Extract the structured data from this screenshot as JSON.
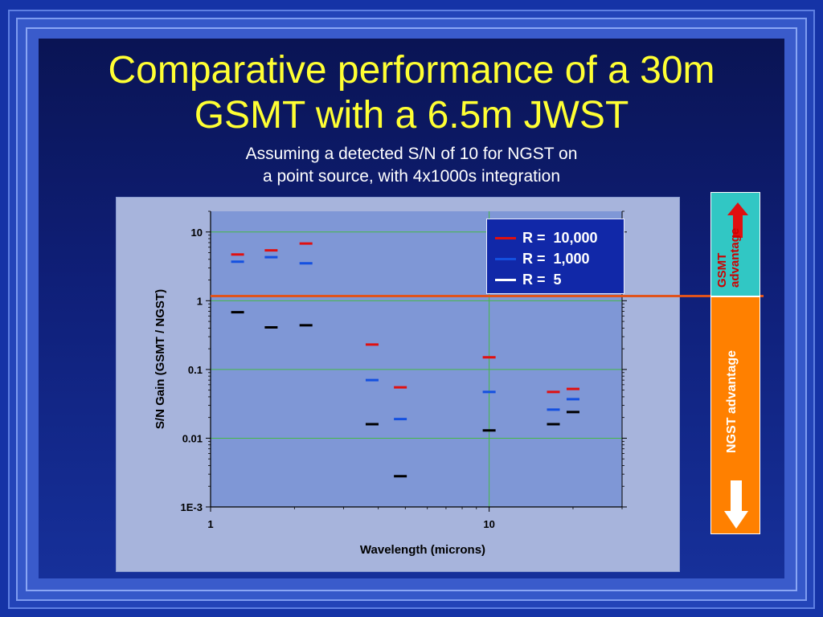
{
  "slide": {
    "title_line1": "Comparative performance of a 30m",
    "title_line2": "GSMT with a 6.5m JWST",
    "subtitle_line1": "Assuming a detected S/N of 10 for NGST on",
    "subtitle_line2": "a point source, with 4x1000s integration",
    "gsmt_side": {
      "line1": "GSMT",
      "line2": "advantage",
      "color": "#cc0000",
      "bg": "#31c7c4"
    },
    "ngst_side": {
      "label": "NGST advantage",
      "bg": "#ff8000"
    }
  },
  "chart_data": {
    "type": "scatter",
    "xlabel": "Wavelength (microns)",
    "ylabel": "S/N Gain (GSMT / NGST)",
    "x_scale": "log",
    "y_scale": "log",
    "xlim": [
      1,
      30
    ],
    "ylim": [
      0.001,
      20
    ],
    "x_ticks": [
      1,
      10
    ],
    "x_tick_labels": [
      "1",
      "10"
    ],
    "y_ticks": [
      0.001,
      0.01,
      0.1,
      1,
      10
    ],
    "y_tick_labels": [
      "1E-3",
      "0.01",
      "0.1",
      "1",
      "10"
    ],
    "grid": true,
    "reference_line_y": 1,
    "legend_position": "top-right",
    "series": [
      {
        "name": "R =  10,000",
        "color": "#e01010",
        "points": [
          [
            1.25,
            4.7
          ],
          [
            1.65,
            5.4
          ],
          [
            2.2,
            6.8
          ],
          [
            3.8,
            0.23
          ],
          [
            4.8,
            0.055
          ],
          [
            10,
            0.15
          ],
          [
            17,
            0.047
          ],
          [
            20,
            0.052
          ]
        ]
      },
      {
        "name": "R =  1,000",
        "color": "#1450e0",
        "points": [
          [
            1.25,
            3.7
          ],
          [
            1.65,
            4.3
          ],
          [
            2.2,
            3.5
          ],
          [
            3.8,
            0.07
          ],
          [
            4.8,
            0.019
          ],
          [
            10,
            0.047
          ],
          [
            17,
            0.026
          ],
          [
            20,
            0.037
          ]
        ]
      },
      {
        "name": "R =  5",
        "color": "#000000",
        "points": [
          [
            1.25,
            0.68
          ],
          [
            1.65,
            0.41
          ],
          [
            2.2,
            0.44
          ],
          [
            3.8,
            0.016
          ],
          [
            4.8,
            0.0028
          ],
          [
            10,
            0.013
          ],
          [
            17,
            0.016
          ],
          [
            20,
            0.024
          ]
        ]
      }
    ]
  }
}
